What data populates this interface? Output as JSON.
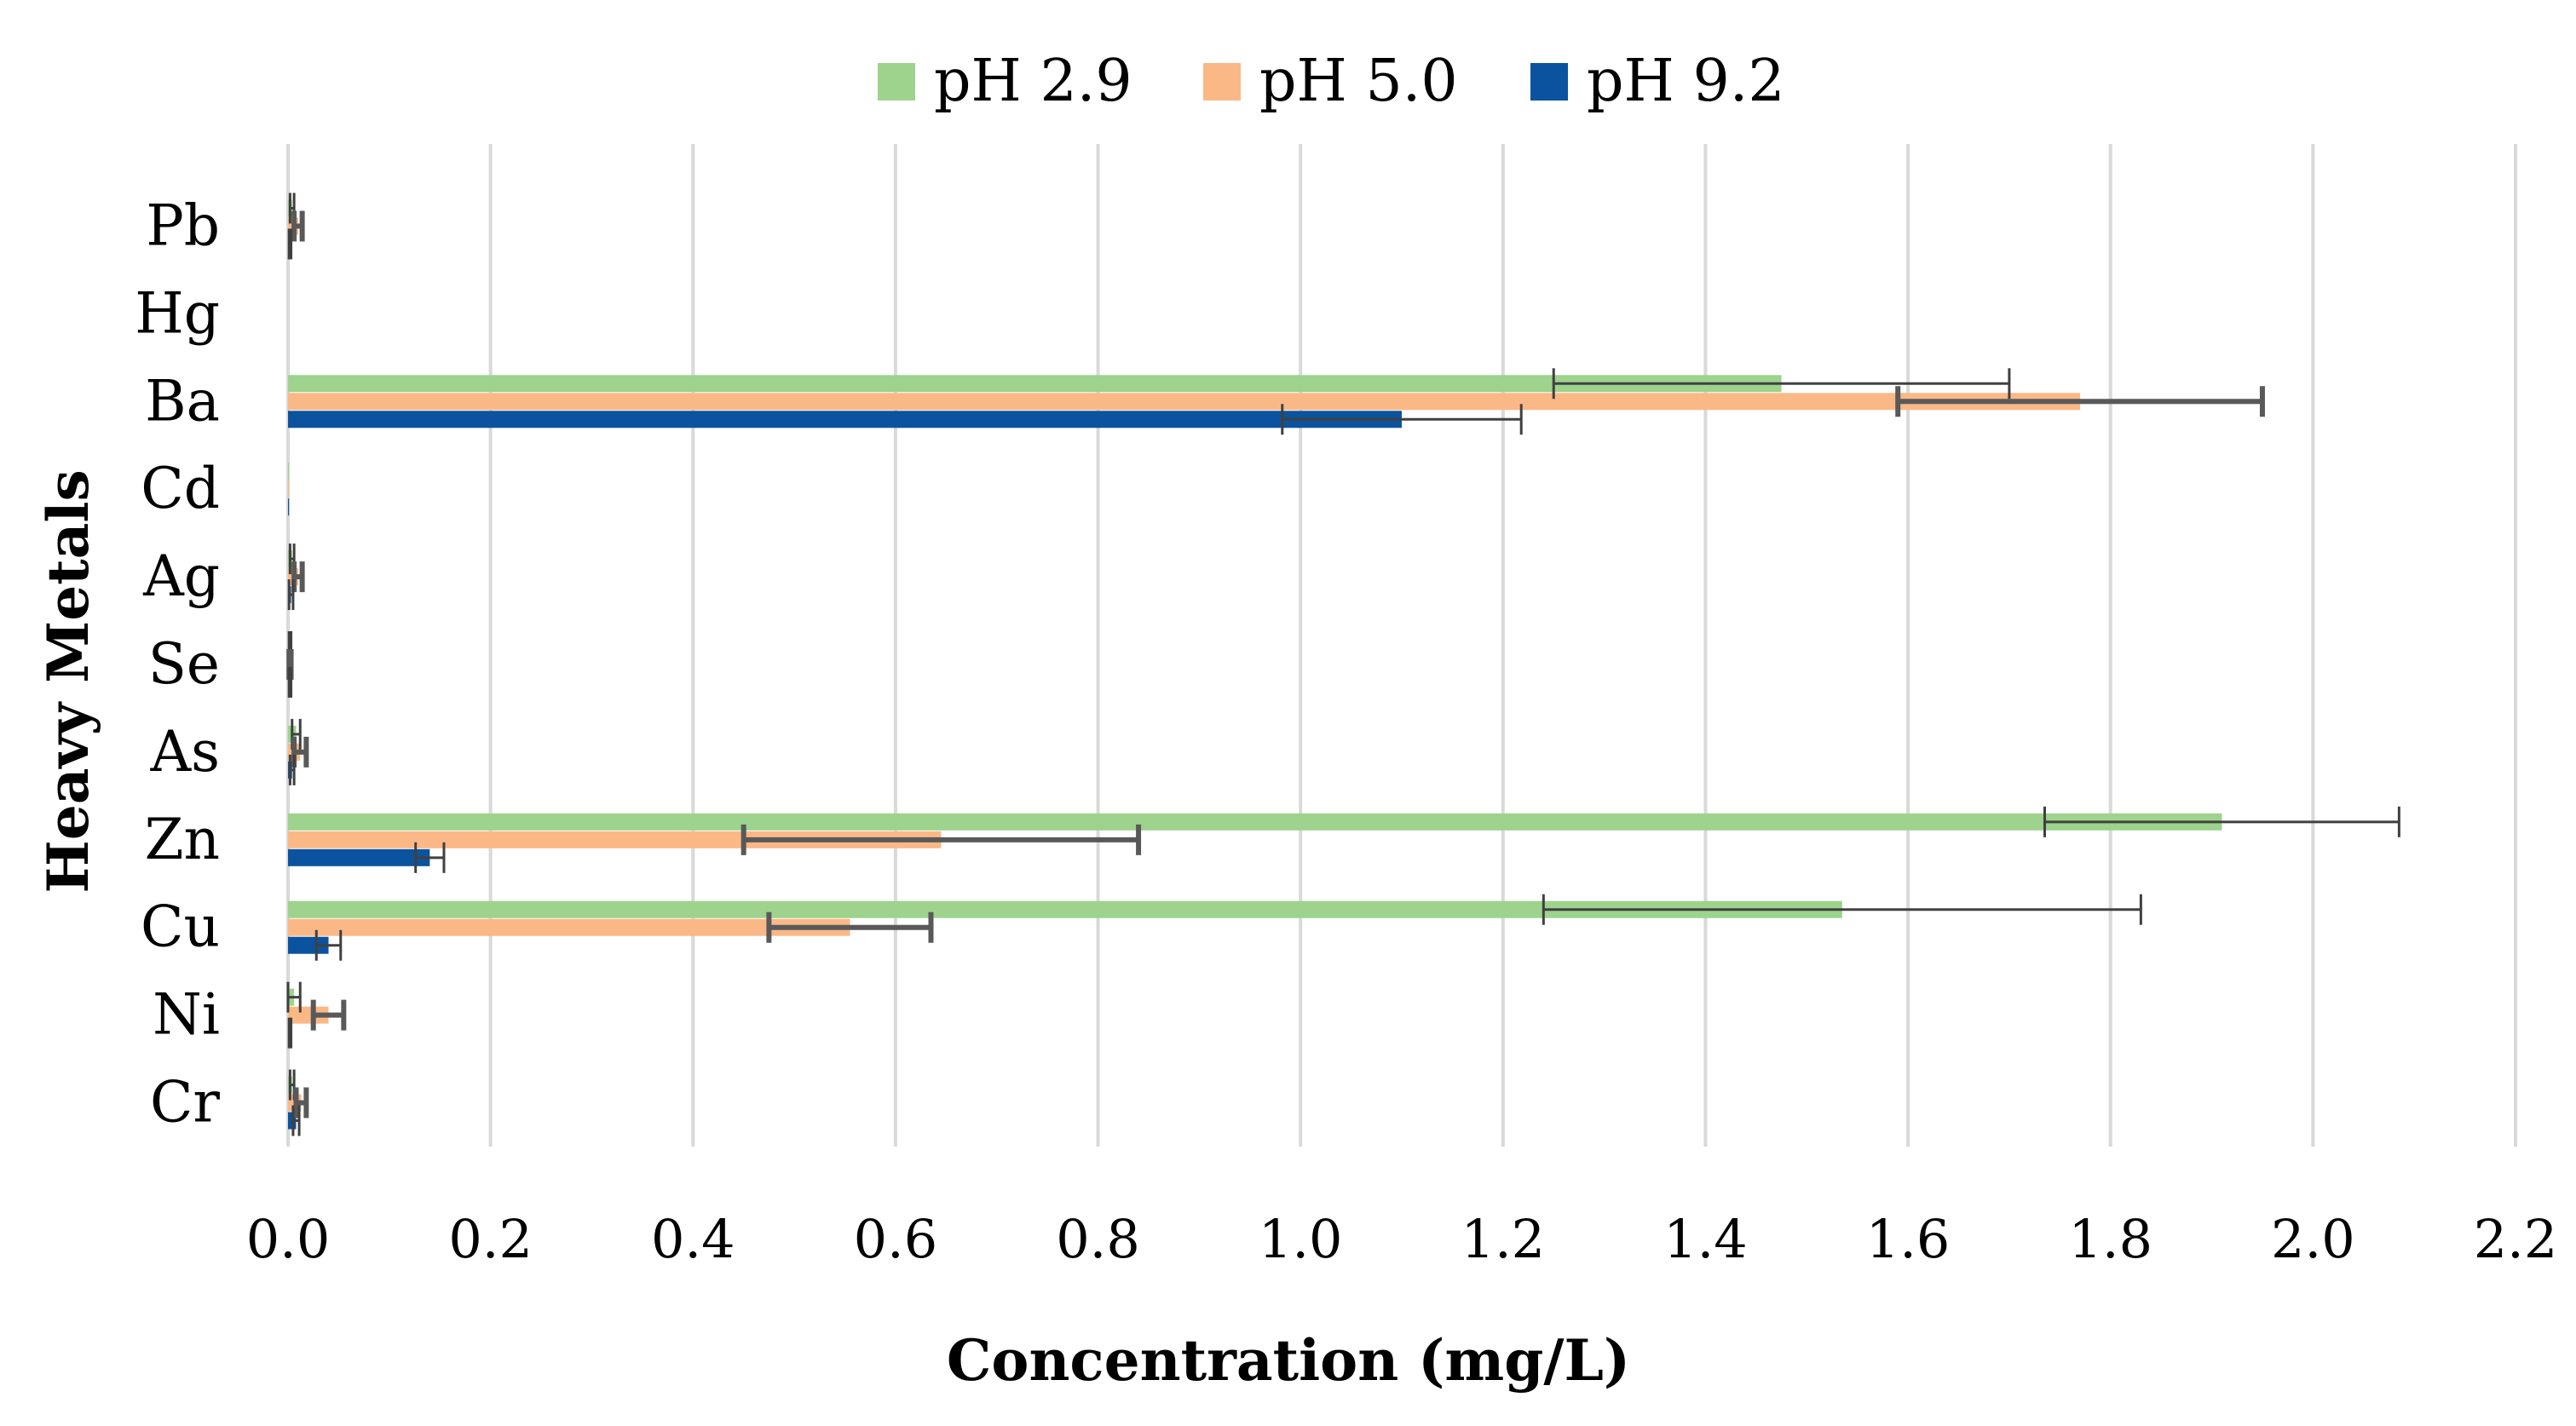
{
  "chart_data": {
    "type": "bar",
    "orientation": "horizontal",
    "title": "",
    "xlabel": "Concentration (mg/L)",
    "ylabel": "Heavy Metals",
    "xlim": [
      0,
      2.2
    ],
    "xticks": [
      "0.0",
      "0.2",
      "0.4",
      "0.6",
      "0.8",
      "1.0",
      "1.2",
      "1.4",
      "1.6",
      "1.8",
      "2.0",
      "2.2"
    ],
    "categories": [
      "Pb",
      "Hg",
      "Ba",
      "Cd",
      "Ag",
      "Se",
      "As",
      "Zn",
      "Cu",
      "Ni",
      "Cr"
    ],
    "grid": true,
    "legend_position": "top-center",
    "series": [
      {
        "name": "pH 2.9",
        "color": "#9dd38d",
        "values": [
          0.004,
          0.0,
          1.475,
          0.001,
          0.004,
          0.002,
          0.008,
          1.91,
          1.535,
          0.006,
          0.004
        ],
        "errors": [
          0.002,
          0.0,
          0.225,
          0.0,
          0.002,
          0.001,
          0.004,
          0.175,
          0.295,
          0.006,
          0.002
        ]
      },
      {
        "name": "pH 5.0",
        "color": "#fbb887",
        "values": [
          0.01,
          0.0,
          1.77,
          0.001,
          0.01,
          0.002,
          0.012,
          0.645,
          0.555,
          0.04,
          0.013
        ],
        "errors": [
          0.004,
          0.0,
          0.18,
          0.0,
          0.004,
          0.001,
          0.006,
          0.195,
          0.08,
          0.015,
          0.005
        ]
      },
      {
        "name": "pH 9.2",
        "color": "#0b539e",
        "values": [
          0.002,
          0.0,
          1.1,
          0.001,
          0.003,
          0.002,
          0.004,
          0.14,
          0.04,
          0.002,
          0.008
        ],
        "errors": [
          0.001,
          0.0,
          0.118,
          0.0,
          0.002,
          0.001,
          0.002,
          0.014,
          0.012,
          0.001,
          0.003
        ]
      }
    ]
  }
}
